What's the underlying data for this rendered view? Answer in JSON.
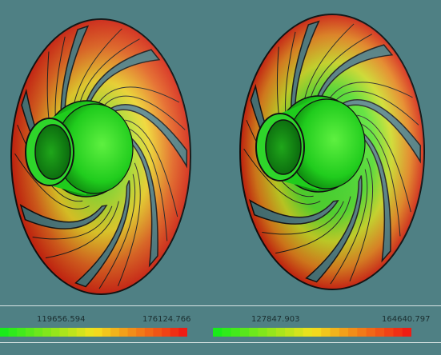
{
  "colors": {
    "background": "#4f8084",
    "low": "#1aeb1a",
    "mid": "#f3e21d",
    "high": "#ef1c13"
  },
  "impellers": [
    {
      "name": "impeller-left"
    },
    {
      "name": "impeller-right"
    }
  ],
  "legends": [
    {
      "min_label": "119656.594",
      "max_label": "176124.766",
      "colormap": "green-yellow-red"
    },
    {
      "min_label": "127847.903",
      "max_label": "164640.797",
      "colormap": "green-yellow-red"
    }
  ]
}
